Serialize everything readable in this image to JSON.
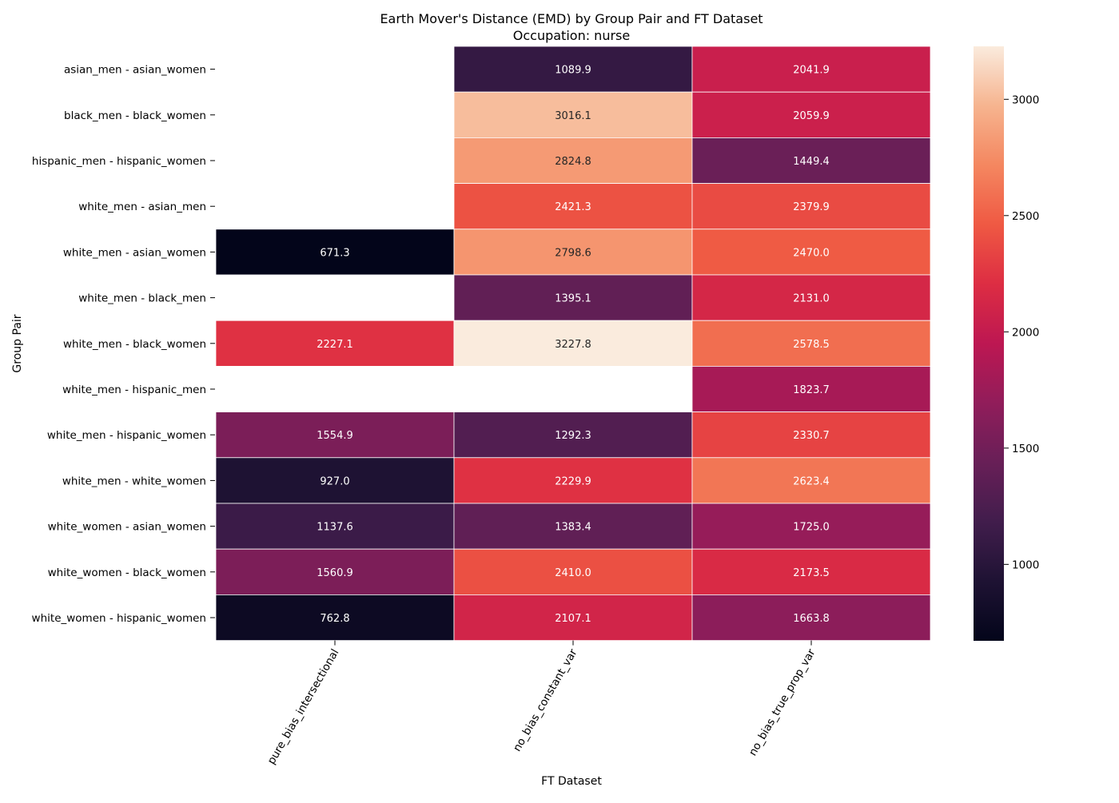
{
  "chart_data": {
    "type": "heatmap",
    "title": "Earth Mover's Distance (EMD) by Group Pair and FT Dataset",
    "subtitle": "Occupation: nurse",
    "xlabel": "FT Dataset",
    "ylabel": "Group Pair",
    "columns": [
      "pure_bias_intersectional",
      "no_bias_constant_var",
      "no_bias_true_prop_var"
    ],
    "rows": [
      "asian_men - asian_women",
      "black_men - black_women",
      "hispanic_men - hispanic_women",
      "white_men - asian_men",
      "white_men - asian_women",
      "white_men - black_men",
      "white_men - black_women",
      "white_men - hispanic_men",
      "white_men - hispanic_women",
      "white_men - white_women",
      "white_women - asian_women",
      "white_women - black_women",
      "white_women - hispanic_women"
    ],
    "values": [
      [
        null,
        1089.9,
        2041.9
      ],
      [
        null,
        3016.1,
        2059.9
      ],
      [
        null,
        2824.8,
        1449.4
      ],
      [
        null,
        2421.3,
        2379.9
      ],
      [
        671.3,
        2798.6,
        2470.0
      ],
      [
        null,
        1395.1,
        2131.0
      ],
      [
        2227.1,
        3227.8,
        2578.5
      ],
      [
        null,
        null,
        1823.7
      ],
      [
        1554.9,
        1292.3,
        2330.7
      ],
      [
        927.0,
        2229.9,
        2623.4
      ],
      [
        1137.6,
        1383.4,
        1725.0
      ],
      [
        1560.9,
        2410.0,
        2173.5
      ],
      [
        762.8,
        2107.1,
        1663.8
      ]
    ],
    "value_format": "0.1f",
    "colormap": "rocket",
    "colorbar": {
      "range": [
        671.3,
        3227.8
      ],
      "ticks": [
        1000,
        1500,
        2000,
        2500,
        3000
      ]
    },
    "missing_cells": "blank"
  }
}
